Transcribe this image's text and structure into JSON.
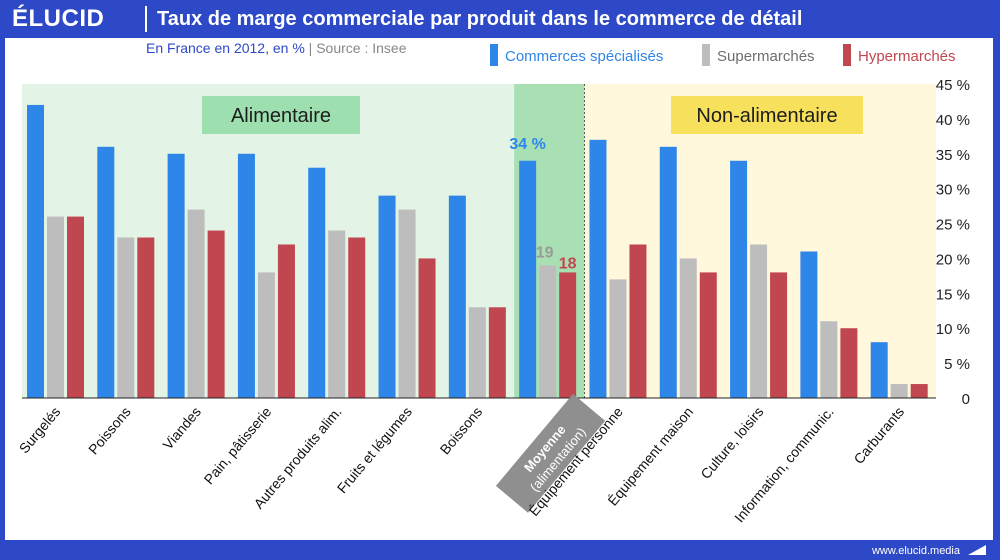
{
  "header": {
    "logo": "ÉLUCID",
    "title": "Taux de marge commerciale par produit dans le commerce de détail"
  },
  "subtitle": {
    "scope": "En France en 2012, en %",
    "separator": "|",
    "source": "Source : Insee"
  },
  "footer": {
    "site": "www.elucid.media"
  },
  "regions": {
    "food": "Alimentaire",
    "nonfood": "Non-alimentaire"
  },
  "colors": {
    "specialises": "#2e86e8",
    "supermarches": "#bdbdbd",
    "hypermarches": "#c0464f",
    "brand": "#2d49c8",
    "food_bg": "#e3f3e6",
    "avg_bg": "#a8e0b4",
    "nonfood_bg": "#fff8dc",
    "food_label_bg": "#9ddfae",
    "nonfood_label_bg": "#f7e15c"
  },
  "chart_data": {
    "type": "bar",
    "ylim": [
      0,
      45
    ],
    "y_ticks": [
      "0",
      "5 %",
      "10 %",
      "15 %",
      "20 %",
      "25 %",
      "30 %",
      "35 %",
      "40 %",
      "45 %"
    ],
    "categories": [
      "Surgelés",
      "Poissons",
      "Viandes",
      "Pain, pâtisserie",
      "Autres produits alim.",
      "Fruits et légumes",
      "Boissons",
      "Moyenne (alimentation)",
      "Équipement personne",
      "Équipement maison",
      "Culture, loisirs",
      "Information, communic.",
      "Carburants"
    ],
    "average_label_lines": [
      "Moyenne",
      "(alimentation)"
    ],
    "series": [
      {
        "name": "Commerces spécialisés",
        "color": "#2e86e8",
        "values": [
          42,
          36,
          35,
          35,
          33,
          29,
          29,
          34,
          37,
          36,
          34,
          21,
          8
        ]
      },
      {
        "name": "Supermarchés",
        "color": "#bdbdbd",
        "values": [
          26,
          23,
          27,
          18,
          24,
          27,
          13,
          19,
          17,
          20,
          22,
          11,
          2
        ]
      },
      {
        "name": "Hypermarchés",
        "color": "#c0464f",
        "values": [
          26,
          23,
          24,
          22,
          23,
          20,
          13,
          18,
          22,
          18,
          18,
          10,
          2
        ]
      }
    ],
    "annotations": [
      {
        "category": "Moyenne (alimentation)",
        "series": "Commerces spécialisés",
        "text": "34 %",
        "color": "#2e86e8"
      },
      {
        "category": "Moyenne (alimentation)",
        "series": "Supermarchés",
        "text": "19",
        "color": "#9a9a9a"
      },
      {
        "category": "Moyenne (alimentation)",
        "series": "Hypermarchés",
        "text": "18",
        "color": "#c0464f"
      }
    ],
    "legend_position": "top-right",
    "grid": false
  }
}
